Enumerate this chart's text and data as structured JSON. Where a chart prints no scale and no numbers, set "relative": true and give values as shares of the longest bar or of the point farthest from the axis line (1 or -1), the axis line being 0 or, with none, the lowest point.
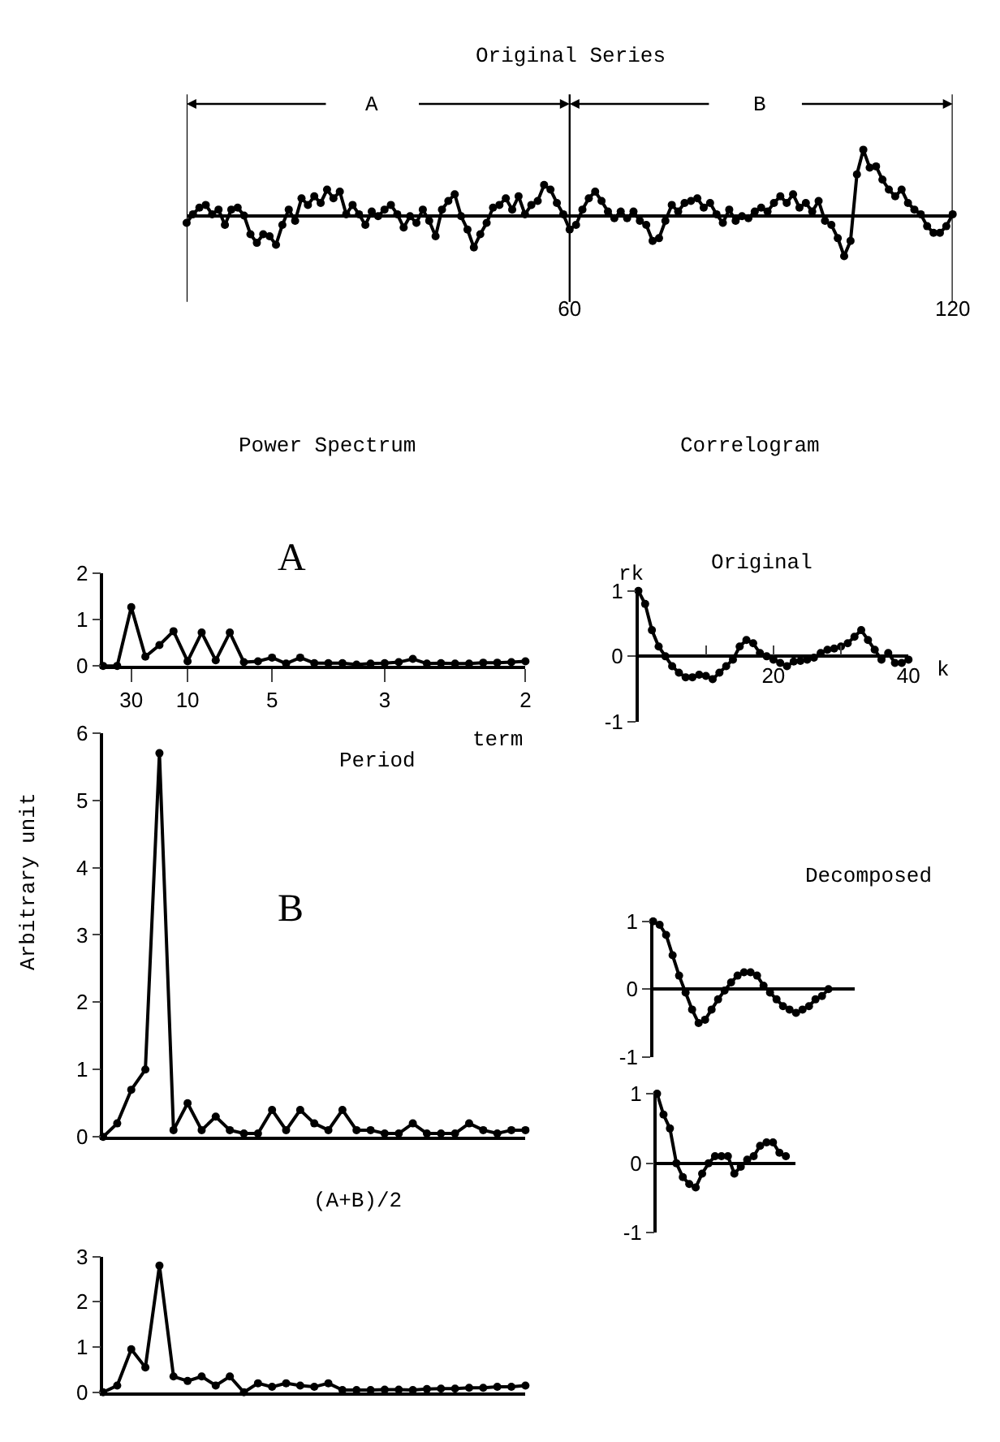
{
  "chart_data": [
    {
      "type": "line",
      "title": "Original Series",
      "relative": true,
      "marker": "circle",
      "line_style": "solid",
      "x": [
        0,
        1,
        2,
        3,
        4,
        5,
        6,
        7,
        8,
        9,
        10,
        11,
        12,
        13,
        14,
        15,
        16,
        17,
        18,
        19,
        20,
        21,
        22,
        23,
        24,
        25,
        26,
        27,
        28,
        29,
        30,
        31,
        32,
        33,
        34,
        35,
        36,
        37,
        38,
        39,
        40,
        41,
        42,
        43,
        44,
        45,
        46,
        47,
        48,
        49,
        50,
        51,
        52,
        53,
        54,
        55,
        56,
        57,
        58,
        59,
        60,
        61,
        62,
        63,
        64,
        65,
        66,
        67,
        68,
        69,
        70,
        71,
        72,
        73,
        74,
        75,
        76,
        77,
        78,
        79,
        80,
        81,
        82,
        83,
        84,
        85,
        86,
        87,
        88,
        89,
        90,
        91,
        92,
        93,
        94,
        95,
        96,
        97,
        98,
        99,
        100,
        101,
        102,
        103,
        104,
        105,
        106,
        107,
        108,
        109,
        110,
        111,
        112,
        113,
        114,
        115,
        116,
        117,
        118,
        119,
        120
      ],
      "series": [
        {
          "color": "#000000",
          "values": [
            -0.1,
            0.03,
            0.13,
            0.17,
            0.03,
            0.1,
            -0.13,
            0.1,
            0.13,
            0.01,
            -0.27,
            -0.4,
            -0.27,
            -0.3,
            -0.43,
            -0.13,
            0.1,
            -0.07,
            0.27,
            0.17,
            0.3,
            0.2,
            0.4,
            0.27,
            0.37,
            0.03,
            0.17,
            0.03,
            -0.13,
            0.07,
            0,
            0.1,
            0.17,
            0.03,
            -0.17,
            0,
            -0.1,
            0.1,
            -0.07,
            -0.3,
            0.1,
            0.23,
            0.33,
            0,
            -0.2,
            -0.47,
            -0.27,
            -0.1,
            0.13,
            0.17,
            0.27,
            0.1,
            0.3,
            0.03,
            0.17,
            0.23,
            0.47,
            0.4,
            0.2,
            0.03,
            -0.2,
            -0.13,
            0.1,
            0.27,
            0.37,
            0.23,
            0.07,
            -0.03,
            0.07,
            -0.03,
            0.07,
            -0.07,
            -0.13,
            -0.37,
            -0.33,
            -0.07,
            0.17,
            0.07,
            0.2,
            0.23,
            0.27,
            0.13,
            0.2,
            0.03,
            -0.1,
            0.1,
            -0.07,
            0,
            -0.03,
            0.07,
            0.13,
            0.07,
            0.2,
            0.3,
            0.2,
            0.33,
            0.13,
            0.2,
            0.07,
            0.23,
            -0.07,
            -0.13,
            -0.33,
            -0.6,
            -0.37,
            0.63,
            1,
            0.73,
            0.75,
            0.55,
            0.4,
            0.3,
            0.4,
            0.2,
            0.1,
            0.03,
            -0.15,
            -0.25,
            -0.25,
            -0.15,
            0.03
          ]
        }
      ],
      "xlim": [
        0,
        120
      ],
      "xticks": [
        {
          "value": 0,
          "label": null
        },
        60,
        120
      ],
      "ref_lines": [
        {
          "axis": "x",
          "value": 60
        }
      ],
      "annotations": [
        "A",
        "B"
      ]
    },
    {
      "type": "line",
      "title": "Power Spectrum",
      "xlabel": "Period",
      "marker": "circle",
      "line_style": "solid",
      "categories": [
        null,
        null,
        "30",
        null,
        null,
        null,
        "10",
        null,
        null,
        null,
        null,
        null,
        "5",
        null,
        null,
        null,
        null,
        null,
        null,
        null,
        "3",
        null,
        null,
        null,
        null,
        null,
        null,
        null,
        null,
        null,
        "2"
      ],
      "series": [
        {
          "color": "#000000",
          "values": [
            0,
            0,
            1.27,
            0.2,
            0.45,
            0.75,
            0.1,
            0.72,
            0.12,
            0.72,
            0.08,
            0.1,
            0.18,
            0.05,
            0.18,
            0.06,
            0.06,
            0.06,
            0.03,
            0.05,
            0.06,
            0.08,
            0.15,
            0.05,
            0.06,
            0.05,
            0.05,
            0.07,
            0.07,
            0.08,
            0.1
          ]
        }
      ],
      "ylim": [
        0,
        2
      ],
      "yticks": [
        0,
        1,
        2
      ],
      "annotations": [
        "A",
        "term"
      ]
    },
    {
      "type": "line",
      "ylabel": "Arbitrary unit",
      "marker": "circle",
      "line_style": "solid",
      "categories": [
        null,
        null,
        null,
        null,
        null,
        null,
        null,
        null,
        null,
        null,
        null,
        null,
        null,
        null,
        null,
        null,
        null,
        null,
        null,
        null,
        null,
        null,
        null,
        null,
        null,
        null,
        null,
        null,
        null,
        null,
        null
      ],
      "series": [
        {
          "color": "#000000",
          "values": [
            0,
            0.2,
            0.7,
            1.0,
            5.7,
            0.1,
            0.5,
            0.1,
            0.3,
            0.1,
            0.05,
            0.05,
            0.4,
            0.1,
            0.4,
            0.2,
            0.1,
            0.4,
            0.1,
            0.1,
            0.05,
            0.05,
            0.2,
            0.05,
            0.05,
            0.05,
            0.2,
            0.1,
            0.05,
            0.1,
            0.1
          ]
        }
      ],
      "ylim": [
        0,
        6
      ],
      "yticks": [
        0,
        1,
        2,
        3,
        4,
        5,
        6
      ],
      "annotations": [
        "B"
      ]
    },
    {
      "type": "line",
      "marker": "circle",
      "line_style": "solid",
      "categories": [
        null,
        null,
        null,
        null,
        null,
        null,
        null,
        null,
        null,
        null,
        null,
        null,
        null,
        null,
        null,
        null,
        null,
        null,
        null,
        null,
        null,
        null,
        null,
        null,
        null,
        null,
        null,
        null,
        null,
        null,
        null
      ],
      "series": [
        {
          "color": "#000000",
          "values": [
            0,
            0.15,
            0.95,
            0.55,
            2.8,
            0.35,
            0.25,
            0.35,
            0.15,
            0.35,
            0,
            0.2,
            0.12,
            0.2,
            0.15,
            0.12,
            0.2,
            0.05,
            0.05,
            0.05,
            0.06,
            0.06,
            0.05,
            0.07,
            0.08,
            0.08,
            0.1,
            0.1,
            0.12,
            0.12,
            0.15
          ]
        }
      ],
      "ylim": [
        0,
        3
      ],
      "yticks": [
        0,
        1,
        2,
        3
      ],
      "annotations": [
        "(A+B)/2"
      ]
    },
    {
      "type": "line",
      "title": "Correlogram",
      "xlabel": "k",
      "ylabel": "rk",
      "marker": "circle",
      "line_style": "solid",
      "x": [
        0,
        1,
        2,
        3,
        4,
        5,
        6,
        7,
        8,
        9,
        10,
        11,
        12,
        13,
        14,
        15,
        16,
        17,
        18,
        19,
        20,
        21,
        22,
        23,
        24,
        25,
        26,
        27,
        28,
        29,
        30,
        31,
        32,
        33,
        34,
        35,
        36,
        37,
        38,
        39,
        40
      ],
      "series": [
        {
          "color": "#000000",
          "values": [
            1.0,
            0.8,
            0.4,
            0.15,
            0,
            -0.15,
            -0.25,
            -0.32,
            -0.32,
            -0.28,
            -0.3,
            -0.35,
            -0.25,
            -0.15,
            -0.05,
            0.15,
            0.25,
            0.2,
            0.05,
            0,
            -0.05,
            -0.1,
            -0.15,
            -0.08,
            -0.07,
            -0.05,
            -0.02,
            0.05,
            0.1,
            0.12,
            0.15,
            0.2,
            0.3,
            0.4,
            0.25,
            0.1,
            -0.05,
            0.05,
            -0.1,
            -0.1,
            -0.05
          ]
        }
      ],
      "xlim": [
        0,
        40
      ],
      "xticks": [
        {
          "value": 10,
          "label": null
        },
        20,
        {
          "value": 30,
          "label": null
        },
        40
      ],
      "ylim": [
        -1,
        1
      ],
      "yticks": [
        -1,
        0,
        1
      ],
      "annotations": [
        "Original"
      ]
    },
    {
      "type": "line",
      "title": "Decomposed",
      "marker": "circle",
      "line_style": "solid",
      "categories": [
        null,
        null,
        null,
        null,
        null,
        null,
        null,
        null,
        null,
        null,
        null,
        null,
        null,
        null,
        null,
        null,
        null,
        null,
        null,
        null,
        null,
        null,
        null,
        null,
        null,
        null,
        null,
        null
      ],
      "series": [
        {
          "color": "#000000",
          "values": [
            1.0,
            0.95,
            0.8,
            0.5,
            0.2,
            -0.05,
            -0.3,
            -0.5,
            -0.45,
            -0.3,
            -0.15,
            -0.02,
            0.1,
            0.2,
            0.25,
            0.25,
            0.2,
            0.05,
            -0.05,
            -0.15,
            -0.25,
            -0.3,
            -0.35,
            -0.3,
            -0.25,
            -0.15,
            -0.1,
            0
          ]
        }
      ],
      "ylim": [
        -1,
        1
      ],
      "yticks": [
        -1,
        0,
        1
      ]
    },
    {
      "type": "line",
      "marker": "circle",
      "line_style": "solid",
      "categories": [
        null,
        null,
        null,
        null,
        null,
        null,
        null,
        null,
        null,
        null,
        null,
        null,
        null,
        null,
        null,
        null,
        null,
        null,
        null,
        null,
        null
      ],
      "series": [
        {
          "color": "#000000",
          "values": [
            1.0,
            0.7,
            0.5,
            0,
            -0.2,
            -0.3,
            -0.35,
            -0.15,
            0,
            0.1,
            0.1,
            0.1,
            -0.15,
            -0.05,
            0.05,
            0.1,
            0.25,
            0.3,
            0.3,
            0.15,
            0.1
          ]
        }
      ],
      "ylim": [
        -1,
        1
      ],
      "yticks": [
        -1,
        0,
        1
      ]
    }
  ]
}
